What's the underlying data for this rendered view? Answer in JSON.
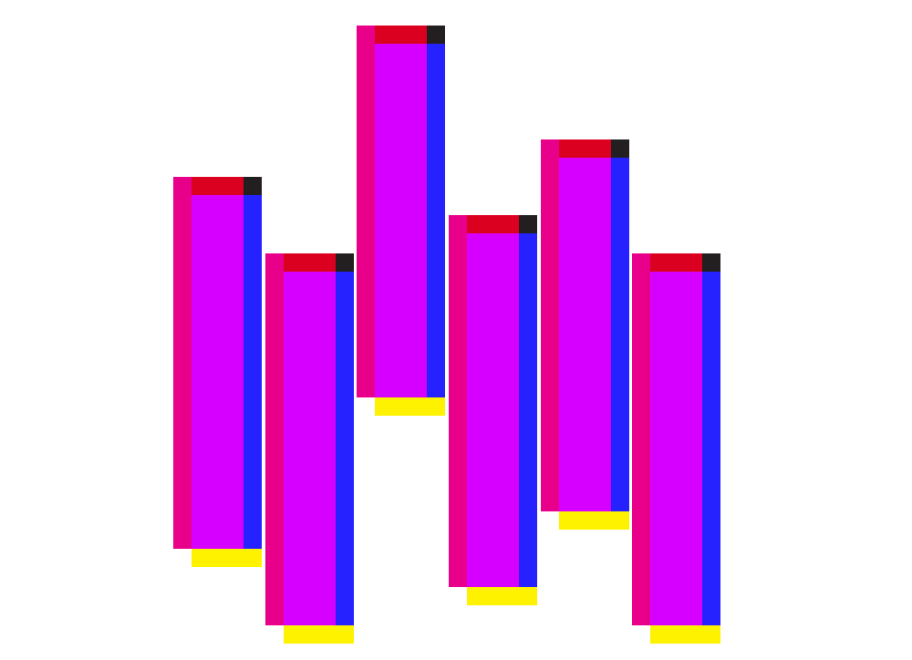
{
  "colors": {
    "background": "#ffffff",
    "left_strip": "#e8008a",
    "top_strip": "#dc0020",
    "corner": "#231f20",
    "body": "#d500ff",
    "right_strip": "#2622ff",
    "bottom_strip": "#fff200"
  },
  "bars": [
    {
      "id": 1
    },
    {
      "id": 2
    },
    {
      "id": 3
    },
    {
      "id": 4
    },
    {
      "id": 5
    },
    {
      "id": 6
    }
  ]
}
